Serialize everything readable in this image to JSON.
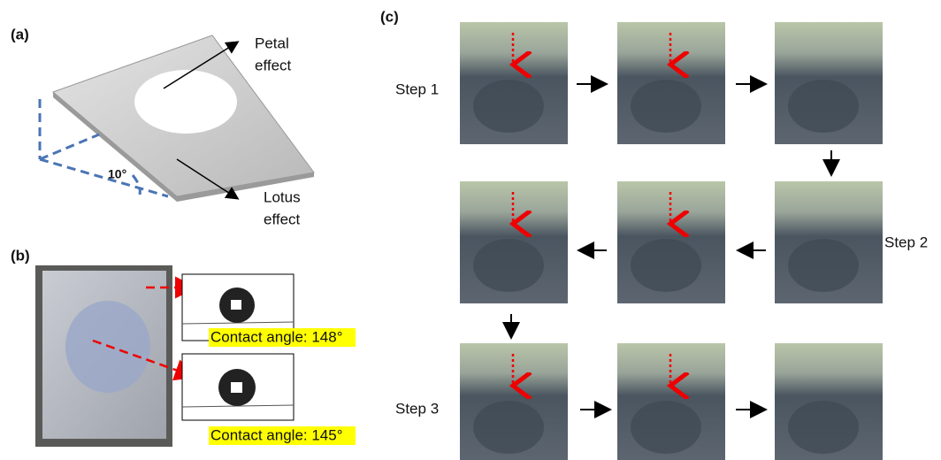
{
  "panel_a": {
    "label": "(a)",
    "petal_label": [
      "Petal",
      "effect"
    ],
    "lotus_label": [
      "Lotus",
      "effect"
    ],
    "angle": "10°"
  },
  "panel_b": {
    "label": "(b)",
    "contact_angles": [
      "Contact angle: 148°",
      "Contact angle: 145°"
    ]
  },
  "panel_c": {
    "label": "(c)",
    "steps": [
      "Step 1",
      "Step 2",
      "Step 3"
    ]
  }
}
